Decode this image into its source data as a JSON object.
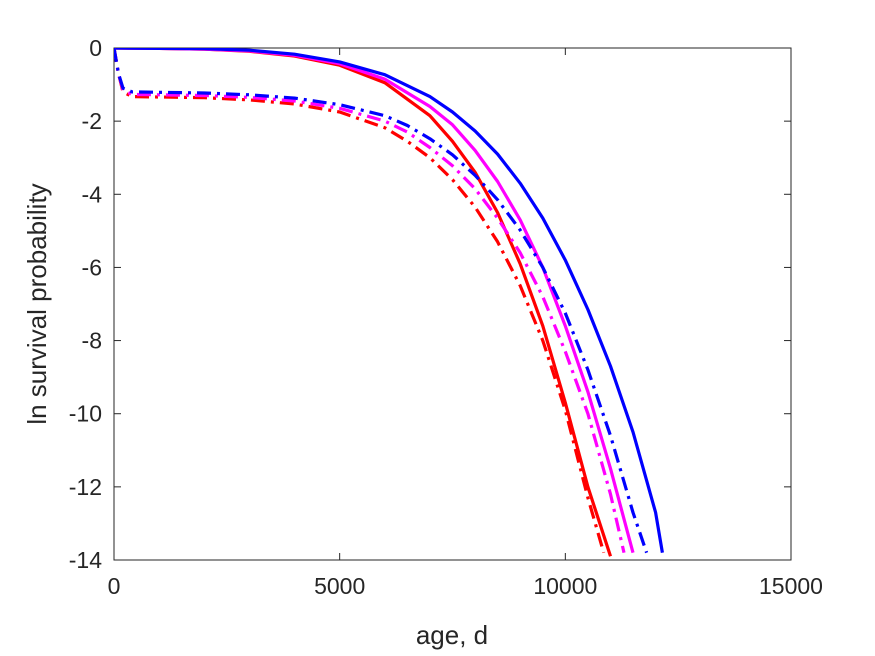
{
  "chart_data": {
    "type": "line",
    "xlabel": "age, d",
    "ylabel": "ln survival probability",
    "xlim": [
      0,
      15000
    ],
    "ylim": [
      -14,
      0
    ],
    "xticks": [
      "0",
      "5000",
      "10000",
      "15000"
    ],
    "yticks": [
      "0",
      "-2",
      "-4",
      "-6",
      "-8",
      "-10",
      "-12",
      "-14"
    ],
    "grid": false,
    "legend": "none",
    "series": [
      {
        "color": "#ff0000",
        "style": "solid",
        "x": [
          0,
          1000,
          2000,
          3000,
          4000,
          5000,
          6000,
          7000,
          7500,
          8000,
          8500,
          9000,
          9500,
          10000,
          10500,
          11000
        ],
        "y": [
          0,
          -0.01,
          -0.03,
          -0.09,
          -0.22,
          -0.47,
          -0.95,
          -1.85,
          -2.55,
          -3.4,
          -4.5,
          -5.9,
          -7.6,
          -9.7,
          -12.0,
          -13.9
        ]
      },
      {
        "color": "#ff00ff",
        "style": "solid",
        "x": [
          0,
          1000,
          2000,
          3000,
          4000,
          5000,
          6000,
          7000,
          7500,
          8000,
          8500,
          9000,
          9500,
          10000,
          10500,
          11000,
          11500
        ],
        "y": [
          0,
          -0.01,
          -0.03,
          -0.08,
          -0.2,
          -0.43,
          -0.85,
          -1.6,
          -2.1,
          -2.8,
          -3.65,
          -4.7,
          -6.0,
          -7.6,
          -9.4,
          -11.5,
          -13.8
        ]
      },
      {
        "color": "#0000ff",
        "style": "solid",
        "x": [
          0,
          1000,
          2000,
          3000,
          4000,
          5000,
          6000,
          7000,
          7500,
          8000,
          8500,
          9000,
          9500,
          10000,
          10500,
          11000,
          11500,
          12000,
          12150
        ],
        "y": [
          0,
          -0.01,
          -0.02,
          -0.06,
          -0.17,
          -0.38,
          -0.73,
          -1.33,
          -1.75,
          -2.27,
          -2.9,
          -3.7,
          -4.65,
          -5.8,
          -7.15,
          -8.7,
          -10.5,
          -12.7,
          -13.8
        ]
      },
      {
        "color": "#ff0000",
        "style": "dashdot",
        "x": [
          0,
          100,
          200,
          400,
          1000,
          2000,
          3000,
          4000,
          5000,
          6000,
          6500,
          7000,
          7500,
          8000,
          8500,
          9000,
          9500,
          10000,
          10500,
          10850
        ],
        "y": [
          0,
          -0.7,
          -1.2,
          -1.33,
          -1.34,
          -1.36,
          -1.42,
          -1.53,
          -1.75,
          -2.18,
          -2.55,
          -3.0,
          -3.6,
          -4.35,
          -5.3,
          -6.5,
          -8.0,
          -9.9,
          -12.3,
          -13.8
        ]
      },
      {
        "color": "#ff00ff",
        "style": "dashdot",
        "x": [
          0,
          100,
          200,
          400,
          1000,
          2000,
          3000,
          4000,
          5000,
          6000,
          6500,
          7000,
          7500,
          8000,
          8500,
          9000,
          9500,
          10000,
          10500,
          11000,
          11300
        ],
        "y": [
          0,
          -0.7,
          -1.15,
          -1.27,
          -1.28,
          -1.3,
          -1.35,
          -1.45,
          -1.65,
          -2.0,
          -2.3,
          -2.72,
          -3.22,
          -3.85,
          -4.65,
          -5.6,
          -6.8,
          -8.3,
          -10.0,
          -12.2,
          -13.8
        ]
      },
      {
        "color": "#0000ff",
        "style": "dashdot",
        "x": [
          0,
          100,
          200,
          400,
          1000,
          2000,
          3000,
          4000,
          5000,
          6000,
          6500,
          7000,
          7500,
          8000,
          8500,
          9000,
          9500,
          10000,
          10500,
          11000,
          11500,
          11800
        ],
        "y": [
          0,
          -0.7,
          -1.1,
          -1.2,
          -1.21,
          -1.23,
          -1.28,
          -1.37,
          -1.55,
          -1.85,
          -2.12,
          -2.48,
          -2.92,
          -3.48,
          -4.15,
          -4.98,
          -6.0,
          -7.25,
          -8.8,
          -10.6,
          -12.7,
          -13.8
        ]
      }
    ]
  }
}
